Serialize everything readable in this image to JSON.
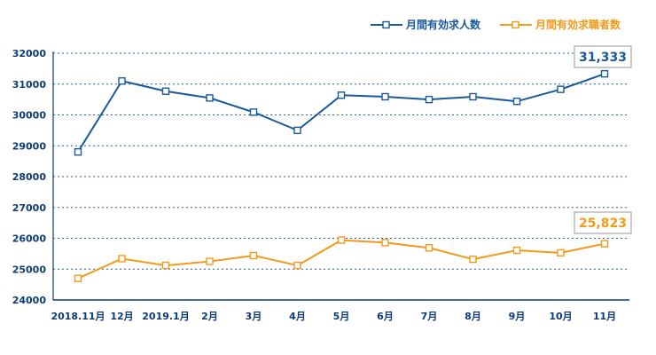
{
  "chart_data": {
    "type": "line",
    "title": "",
    "xlabel": "",
    "ylabel": "",
    "ylim": [
      24000,
      32000
    ],
    "yticks": [
      "32000",
      "31000",
      "30000",
      "29000",
      "28000",
      "27000",
      "26000",
      "25000",
      "24000"
    ],
    "categories": [
      "2018.11月",
      "12月",
      "2019.1月",
      "2月",
      "3月",
      "4月",
      "5月",
      "6月",
      "7月",
      "8月",
      "9月",
      "10月",
      "11月"
    ],
    "grid": "horizontal dashed",
    "legend_position": "top-right",
    "series": [
      {
        "name": "月間有効求人数",
        "color": "#1a5a9c",
        "values": [
          28800,
          31100,
          30770,
          30550,
          30090,
          29500,
          30640,
          30590,
          30500,
          30590,
          30440,
          30830,
          31333
        ],
        "end_label": "31,333"
      },
      {
        "name": "月間有効求職者数",
        "color": "#f29a1a",
        "values": [
          24700,
          25340,
          25120,
          25250,
          25440,
          25120,
          25940,
          25860,
          25690,
          25320,
          25610,
          25530,
          25823
        ],
        "end_label": "25,823"
      }
    ]
  }
}
